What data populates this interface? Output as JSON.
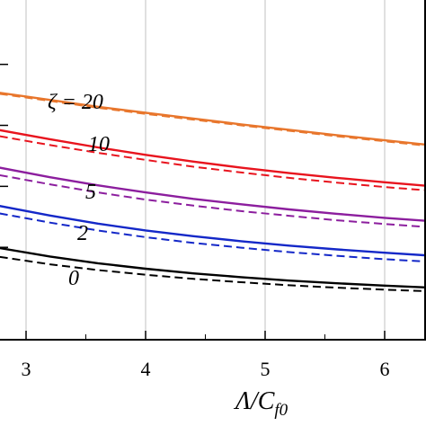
{
  "chart_data": {
    "type": "line",
    "xlabel_main": "Λ/C",
    "xlabel_sub": "f0",
    "ylabel": "",
    "title": "",
    "xlim": [
      2.78,
      6.4
    ],
    "ylim": [
      0,
      1
    ],
    "x_ticks": [
      3,
      4,
      5,
      6
    ],
    "x_tick_labels": [
      "3",
      "4",
      "5",
      "6"
    ],
    "grid": true,
    "legend": "none",
    "series": [
      {
        "label": "ζ = 20",
        "color": "#e8762c",
        "solid": [
          [
            2.78,
            0.726
          ],
          [
            3.2,
            0.705
          ],
          [
            3.6,
            0.685
          ],
          [
            4.0,
            0.667
          ],
          [
            4.4,
            0.65
          ],
          [
            4.8,
            0.633
          ],
          [
            5.2,
            0.617
          ],
          [
            5.6,
            0.601
          ],
          [
            6.0,
            0.586
          ],
          [
            6.4,
            0.571
          ]
        ],
        "dashed": [
          [
            2.78,
            0.723
          ],
          [
            3.2,
            0.702
          ],
          [
            3.6,
            0.682
          ],
          [
            4.0,
            0.664
          ],
          [
            4.4,
            0.647
          ],
          [
            4.8,
            0.63
          ],
          [
            5.2,
            0.614
          ],
          [
            5.6,
            0.598
          ],
          [
            6.0,
            0.583
          ],
          [
            6.4,
            0.568
          ]
        ]
      },
      {
        "label": "10",
        "color": "#e8141e",
        "solid": [
          [
            2.78,
            0.616
          ],
          [
            3.2,
            0.589
          ],
          [
            3.6,
            0.565
          ],
          [
            4.0,
            0.543
          ],
          [
            4.4,
            0.523
          ],
          [
            4.8,
            0.505
          ],
          [
            5.2,
            0.489
          ],
          [
            5.6,
            0.475
          ],
          [
            6.0,
            0.462
          ],
          [
            6.4,
            0.45
          ]
        ],
        "dashed": [
          [
            2.78,
            0.598
          ],
          [
            3.2,
            0.572
          ],
          [
            3.6,
            0.549
          ],
          [
            4.0,
            0.528
          ],
          [
            4.4,
            0.508
          ],
          [
            4.8,
            0.491
          ],
          [
            5.2,
            0.475
          ],
          [
            5.6,
            0.461
          ],
          [
            6.0,
            0.448
          ],
          [
            6.4,
            0.437
          ]
        ]
      },
      {
        "label": "5",
        "color": "#8c1e9e",
        "solid": [
          [
            2.78,
            0.505
          ],
          [
            3.2,
            0.477
          ],
          [
            3.6,
            0.453
          ],
          [
            4.0,
            0.432
          ],
          [
            4.4,
            0.413
          ],
          [
            4.8,
            0.397
          ],
          [
            5.2,
            0.382
          ],
          [
            5.6,
            0.369
          ],
          [
            6.0,
            0.357
          ],
          [
            6.4,
            0.347
          ]
        ],
        "dashed": [
          [
            2.78,
            0.483
          ],
          [
            3.2,
            0.456
          ],
          [
            3.6,
            0.432
          ],
          [
            4.0,
            0.411
          ],
          [
            4.4,
            0.393
          ],
          [
            4.8,
            0.377
          ],
          [
            5.2,
            0.363
          ],
          [
            5.6,
            0.35
          ],
          [
            6.0,
            0.339
          ],
          [
            6.4,
            0.329
          ]
        ]
      },
      {
        "label": "2",
        "color": "#1428c8",
        "solid": [
          [
            2.78,
            0.392
          ],
          [
            3.2,
            0.364
          ],
          [
            3.6,
            0.34
          ],
          [
            4.0,
            0.32
          ],
          [
            4.4,
            0.303
          ],
          [
            4.8,
            0.288
          ],
          [
            5.2,
            0.275
          ],
          [
            5.6,
            0.264
          ],
          [
            6.0,
            0.254
          ],
          [
            6.4,
            0.245
          ]
        ],
        "dashed": [
          [
            2.78,
            0.37
          ],
          [
            3.2,
            0.343
          ],
          [
            3.6,
            0.32
          ],
          [
            4.0,
            0.3
          ],
          [
            4.4,
            0.283
          ],
          [
            4.8,
            0.269
          ],
          [
            5.2,
            0.256
          ],
          [
            5.6,
            0.245
          ],
          [
            6.0,
            0.235
          ],
          [
            6.4,
            0.227
          ]
        ]
      },
      {
        "label": "0",
        "color": "#000000",
        "solid": [
          [
            2.78,
            0.268
          ],
          [
            3.2,
            0.243
          ],
          [
            3.6,
            0.223
          ],
          [
            4.0,
            0.207
          ],
          [
            4.4,
            0.193
          ],
          [
            4.8,
            0.182
          ],
          [
            5.2,
            0.172
          ],
          [
            5.6,
            0.164
          ],
          [
            6.0,
            0.157
          ],
          [
            6.4,
            0.151
          ]
        ],
        "dashed": [
          [
            2.78,
            0.242
          ],
          [
            3.2,
            0.22
          ],
          [
            3.6,
            0.203
          ],
          [
            4.0,
            0.189
          ],
          [
            4.4,
            0.177
          ],
          [
            4.8,
            0.167
          ],
          [
            5.2,
            0.158
          ],
          [
            5.6,
            0.151
          ],
          [
            6.0,
            0.145
          ],
          [
            6.4,
            0.14
          ]
        ]
      }
    ]
  }
}
